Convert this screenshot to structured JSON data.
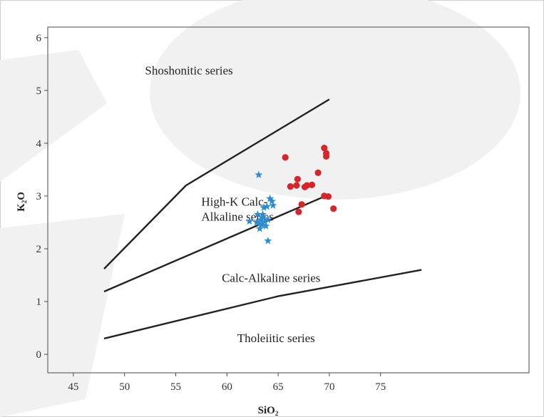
{
  "chart_data": {
    "type": "scatter",
    "title": "",
    "xlabel": "SiO",
    "xlabel_sub": "2",
    "ylabel_main": "K",
    "ylabel_sub": "2",
    "ylabel_end": "O",
    "xlim": [
      42.5,
      89.5
    ],
    "ylim": [
      -0.35,
      6.2
    ],
    "xticks": [
      45,
      50,
      55,
      60,
      65,
      70,
      75
    ],
    "yticks": [
      0,
      1,
      2,
      3,
      4,
      5,
      6
    ],
    "grid": false,
    "boundaries": [
      {
        "name": "shoshonitic-boundary",
        "points": [
          [
            48,
            1.62
          ],
          [
            56,
            3.2
          ],
          [
            70,
            4.83
          ]
        ]
      },
      {
        "name": "high-k-boundary",
        "points": [
          [
            48,
            1.19
          ],
          [
            70,
            3.03
          ]
        ]
      },
      {
        "name": "calc-alkaline-boundary",
        "points": [
          [
            48,
            0.3
          ],
          [
            65,
            1.1
          ],
          [
            79,
            1.6
          ]
        ]
      }
    ],
    "field_labels": [
      {
        "name": "shoshonitic-series-label",
        "lines": [
          "Shoshonitic series"
        ],
        "x": 52,
        "y": 5.3
      },
      {
        "name": "high-k-series-label",
        "lines": [
          "High-K Calc-",
          "Alkaline series"
        ],
        "x": 57.5,
        "y": 2.82
      },
      {
        "name": "calc-alkaline-series-label",
        "lines": [
          "Calc-Alkaline series"
        ],
        "x": 59.5,
        "y": 1.37
      },
      {
        "name": "tholeiitic-series-label",
        "lines": [
          "Tholeiitic series"
        ],
        "x": 61,
        "y": 0.23
      }
    ],
    "series": [
      {
        "marker": "star",
        "color": "#2b8ccf",
        "points": [
          [
            62.2,
            2.52
          ],
          [
            63.1,
            3.4
          ],
          [
            63.0,
            2.65
          ],
          [
            63.3,
            2.55
          ],
          [
            63.5,
            2.65
          ],
          [
            63.6,
            2.78
          ],
          [
            63.2,
            2.48
          ],
          [
            63.4,
            2.45
          ],
          [
            63.8,
            2.43
          ],
          [
            63.2,
            2.38
          ],
          [
            63.7,
            2.52
          ],
          [
            64.0,
            2.55
          ],
          [
            63.9,
            2.8
          ],
          [
            64.2,
            2.95
          ],
          [
            64.4,
            2.9
          ],
          [
            64.5,
            2.82
          ],
          [
            64.0,
            2.15
          ],
          [
            63.5,
            2.6
          ],
          [
            62.9,
            2.5
          ]
        ]
      },
      {
        "marker": "circle",
        "color": "#d7262b",
        "points": [
          [
            65.7,
            3.73
          ],
          [
            66.2,
            3.18
          ],
          [
            66.8,
            3.2
          ],
          [
            66.9,
            3.32
          ],
          [
            67.6,
            3.17
          ],
          [
            67.8,
            3.2
          ],
          [
            68.3,
            3.21
          ],
          [
            68.9,
            3.44
          ],
          [
            69.5,
            3.91
          ],
          [
            69.7,
            3.75
          ],
          [
            69.7,
            3.81
          ],
          [
            69.5,
            3.0
          ],
          [
            69.9,
            2.99
          ],
          [
            67.3,
            2.84
          ],
          [
            67.0,
            2.7
          ],
          [
            70.4,
            2.76
          ]
        ]
      }
    ]
  }
}
